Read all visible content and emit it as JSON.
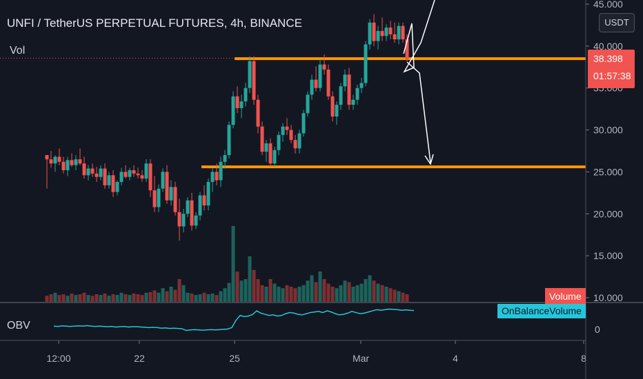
{
  "header": {
    "title": "UNFI / TetherUS PERPETUAL FUTURES, 4h, BINANCE",
    "volume_indicator": "Vol",
    "currency_button": "USDT"
  },
  "price_scale": {
    "ticks": [
      "45.000",
      "40.000",
      "35.000",
      "30.000",
      "25.000",
      "20.000",
      "15.000",
      "10.000"
    ],
    "last_price": "38.398",
    "countdown": "01:57:38"
  },
  "obv_pane": {
    "title": "OBV",
    "label": "OnBalanceVolume",
    "zero_tick": "0"
  },
  "volume_label": "Volume",
  "time_axis": {
    "ticks": [
      "12:00",
      "22",
      "25",
      "Mar",
      "4",
      "8"
    ]
  },
  "colors": {
    "background": "#131722",
    "up": "#26a69a",
    "down": "#ef5350",
    "level": "#ff9800",
    "obv": "#26c6da",
    "arrow": "#ffffff"
  },
  "chart_data": {
    "type": "candlestick",
    "y_unit": "USDT",
    "ylim": [
      9,
      46
    ],
    "grid": false,
    "last_price": 38.398,
    "levels": [
      38.5,
      25.6
    ],
    "candles": [
      [
        27,
        27,
        23,
        26.5
      ],
      [
        26.5,
        27.5,
        25.5,
        26
      ],
      [
        26,
        27,
        25,
        26.8
      ],
      [
        26.8,
        27.8,
        25.8,
        26.2
      ],
      [
        26.2,
        26.8,
        24.8,
        25.2
      ],
      [
        25.2,
        26.8,
        24.5,
        26.4
      ],
      [
        26.4,
        27.2,
        25.6,
        25.8
      ],
      [
        25.8,
        27,
        25.2,
        26.5
      ],
      [
        26.5,
        27.8,
        25.8,
        26
      ],
      [
        26,
        26.8,
        24.2,
        24.6
      ],
      [
        24.6,
        25.8,
        24,
        25.4
      ],
      [
        25.4,
        26,
        24.4,
        24.8
      ],
      [
        24.8,
        25.6,
        23.8,
        24.4
      ],
      [
        24.4,
        25.8,
        24,
        25.4
      ],
      [
        25.4,
        26,
        23,
        23.4
      ],
      [
        23.4,
        25,
        23,
        24.6
      ],
      [
        24.6,
        25.2,
        22,
        22.6
      ],
      [
        22.6,
        24,
        22.2,
        23.8
      ],
      [
        23.8,
        25.5,
        23.4,
        25
      ],
      [
        25,
        25.8,
        24.2,
        24.4
      ],
      [
        24.4,
        25.5,
        24,
        25.2
      ],
      [
        25.2,
        25.8,
        24.4,
        24.8
      ],
      [
        24.8,
        25.5,
        24.2,
        24.6
      ],
      [
        24.6,
        25.2,
        23.8,
        24.2
      ],
      [
        24.2,
        26.5,
        23.8,
        26
      ],
      [
        26,
        26.5,
        22,
        22.8
      ],
      [
        22.8,
        24.5,
        20.2,
        20.8
      ],
      [
        20.8,
        23.5,
        20.2,
        23
      ],
      [
        23,
        25.4,
        22.6,
        25
      ],
      [
        25,
        25.8,
        21.2,
        21.6
      ],
      [
        21.6,
        24,
        21,
        23.2
      ],
      [
        23.2,
        23.8,
        19.8,
        20.2
      ],
      [
        20.2,
        21.8,
        16.8,
        18.5
      ],
      [
        18.5,
        20.6,
        17.8,
        20
      ],
      [
        20,
        22,
        19.6,
        21.6
      ],
      [
        21.6,
        22.5,
        18,
        18.6
      ],
      [
        18.6,
        20.2,
        18.2,
        19.8
      ],
      [
        19.8,
        22.6,
        19.2,
        22.2
      ],
      [
        22.2,
        23.4,
        20.4,
        21
      ],
      [
        21,
        24.2,
        20.4,
        23.8
      ],
      [
        23.8,
        25.4,
        22.6,
        25
      ],
      [
        25,
        26,
        23.4,
        24
      ],
      [
        24,
        26.8,
        23.2,
        26.2
      ],
      [
        26.2,
        27.6,
        25.4,
        27
      ],
      [
        27,
        31,
        26.6,
        30.6
      ],
      [
        30.6,
        34.6,
        30.2,
        34
      ],
      [
        34,
        35.2,
        32,
        32.6
      ],
      [
        32.6,
        34.2,
        31.4,
        33.4
      ],
      [
        33.4,
        35.6,
        32.8,
        35
      ],
      [
        35,
        38.8,
        34.4,
        38.2
      ],
      [
        38.2,
        38.8,
        33,
        33.6
      ],
      [
        33.6,
        34.2,
        29.6,
        30.4
      ],
      [
        30.4,
        31,
        27,
        27.4
      ],
      [
        27.4,
        28.8,
        26.2,
        28.4
      ],
      [
        28.4,
        29,
        25.6,
        26
      ],
      [
        26,
        28,
        25.6,
        27.6
      ],
      [
        27.6,
        29.8,
        27,
        29.4
      ],
      [
        29.4,
        30.8,
        28.6,
        30.4
      ],
      [
        30.4,
        31.4,
        29.4,
        30
      ],
      [
        30,
        30.6,
        28.4,
        28.8
      ],
      [
        28.8,
        29.4,
        27.2,
        27.8
      ],
      [
        27.8,
        30,
        27.2,
        29.6
      ],
      [
        29.6,
        32.4,
        29.2,
        32
      ],
      [
        32,
        34.6,
        31.6,
        34.2
      ],
      [
        34.2,
        36.6,
        33.6,
        36
      ],
      [
        36,
        37.6,
        34.6,
        35
      ],
      [
        35,
        38.4,
        34.6,
        37.8
      ],
      [
        37.8,
        39,
        36.6,
        37.2
      ],
      [
        37.2,
        37.8,
        33.6,
        34
      ],
      [
        34,
        34.6,
        31,
        31.6
      ],
      [
        31.6,
        33.4,
        30.6,
        33
      ],
      [
        33,
        35.6,
        32.4,
        35.2
      ],
      [
        35.2,
        37.2,
        34.6,
        36.6
      ],
      [
        36.6,
        37.4,
        32.4,
        33
      ],
      [
        33,
        34.2,
        32.4,
        33.6
      ],
      [
        33.6,
        35.4,
        33,
        35
      ],
      [
        35,
        36.2,
        34.4,
        35.6
      ],
      [
        35.6,
        40.6,
        35.2,
        40.2
      ],
      [
        40.2,
        43.2,
        39.6,
        42.8
      ],
      [
        42.8,
        43.8,
        40,
        40.6
      ],
      [
        40.6,
        42.4,
        39.6,
        41.8
      ],
      [
        41.8,
        43.4,
        40.6,
        41.2
      ],
      [
        41.2,
        42.6,
        40.6,
        42.2
      ],
      [
        42.2,
        43,
        40.8,
        41.4
      ],
      [
        41.4,
        42.8,
        40.4,
        40.8
      ],
      [
        40.8,
        42.8,
        40.2,
        42.4
      ],
      [
        42.4,
        42.8,
        40.4,
        40.8
      ],
      [
        40.8,
        41.4,
        38.2,
        38.398
      ]
    ],
    "volume_rel": [
      0.08,
      0.1,
      0.12,
      0.09,
      0.1,
      0.08,
      0.11,
      0.09,
      0.1,
      0.12,
      0.09,
      0.08,
      0.1,
      0.09,
      0.11,
      0.08,
      0.1,
      0.09,
      0.12,
      0.1,
      0.09,
      0.11,
      0.1,
      0.09,
      0.12,
      0.13,
      0.15,
      0.12,
      0.18,
      0.14,
      0.2,
      0.16,
      0.3,
      0.22,
      0.12,
      0.11,
      0.09,
      0.1,
      0.12,
      0.1,
      0.11,
      0.09,
      0.14,
      0.18,
      0.25,
      1.0,
      0.4,
      0.28,
      0.3,
      0.6,
      0.42,
      0.3,
      0.22,
      0.2,
      0.3,
      0.24,
      0.2,
      0.18,
      0.22,
      0.2,
      0.18,
      0.2,
      0.22,
      0.28,
      0.35,
      0.26,
      0.4,
      0.3,
      0.24,
      0.2,
      0.18,
      0.22,
      0.28,
      0.26,
      0.2,
      0.22,
      0.24,
      0.3,
      0.35,
      0.28,
      0.24,
      0.22,
      0.2,
      0.18,
      0.16,
      0.14,
      0.12,
      0.1
    ],
    "obv_rel": [
      0.35,
      0.34,
      0.36,
      0.35,
      0.34,
      0.35,
      0.36,
      0.35,
      0.37,
      0.35,
      0.34,
      0.35,
      0.34,
      0.33,
      0.34,
      0.32,
      0.33,
      0.34,
      0.32,
      0.33,
      0.33,
      0.32,
      0.31,
      0.3,
      0.31,
      0.3,
      0.28,
      0.29,
      0.27,
      0.28,
      0.27,
      0.26,
      0.2,
      0.22,
      0.23,
      0.22,
      0.21,
      0.22,
      0.23,
      0.22,
      0.23,
      0.24,
      0.25,
      0.3,
      0.55,
      0.72,
      0.68,
      0.7,
      0.75,
      0.88,
      0.8,
      0.76,
      0.72,
      0.74,
      0.7,
      0.72,
      0.78,
      0.82,
      0.8,
      0.76,
      0.74,
      0.78,
      0.82,
      0.84,
      0.86,
      0.82,
      0.88,
      0.84,
      0.78,
      0.74,
      0.76,
      0.8,
      0.86,
      0.82,
      0.78,
      0.8,
      0.84,
      0.88,
      0.92,
      0.9,
      0.92,
      0.94,
      0.93,
      0.92,
      0.9,
      0.91,
      0.9,
      0.89
    ],
    "arrows": [
      {
        "from": [
          3.9,
          38.6
        ],
        "to": [
          4.05,
          45
        ],
        "note": "zigzag up"
      },
      {
        "from": [
          3.95,
          37
        ],
        "to": [
          4.1,
          25.6
        ],
        "note": "down to support"
      }
    ]
  }
}
